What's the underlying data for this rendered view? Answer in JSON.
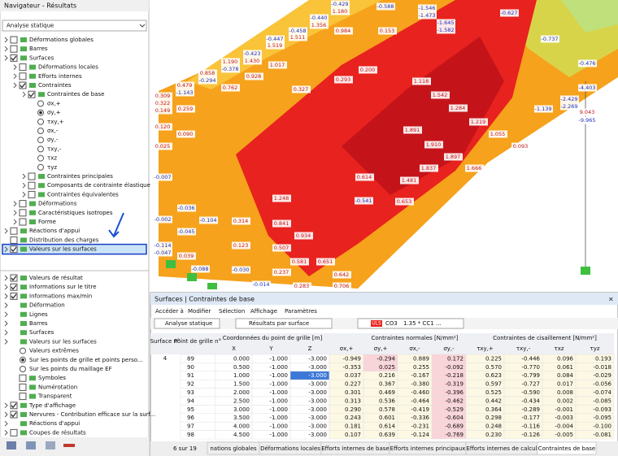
{
  "navigator": {
    "title": "Navigateur - Résultats",
    "dropdown": "Analyse statique",
    "tree": [
      {
        "label": "Déformations globales",
        "level": 0,
        "check": "off",
        "expander": true
      },
      {
        "label": "Barres",
        "level": 0,
        "check": "off",
        "expander": true
      },
      {
        "label": "Surfaces",
        "level": 0,
        "check": "on",
        "expander": true
      },
      {
        "label": "Déformations locales",
        "level": 1,
        "check": "off",
        "expander": true
      },
      {
        "label": "Efforts internes",
        "level": 1,
        "check": "off",
        "expander": true
      },
      {
        "label": "Contraintes",
        "level": 1,
        "check": "on",
        "expander": true
      },
      {
        "label": "Contraintes de base",
        "level": 2,
        "check": "on",
        "expander": true
      },
      {
        "label": "σx,+",
        "level": 3,
        "check": "radio"
      },
      {
        "label": "σy,+",
        "level": 3,
        "check": "radio-on"
      },
      {
        "label": "τxy,+",
        "level": 3,
        "check": "radio"
      },
      {
        "label": "σx,-",
        "level": 3,
        "check": "radio"
      },
      {
        "label": "σy,-",
        "level": 3,
        "check": "radio"
      },
      {
        "label": "τxy,-",
        "level": 3,
        "check": "radio"
      },
      {
        "label": "τxz",
        "level": 3,
        "check": "radio"
      },
      {
        "label": "τyz",
        "level": 3,
        "check": "radio"
      },
      {
        "label": "Contraintes principales",
        "level": 2,
        "check": "off",
        "expander": true
      },
      {
        "label": "Composants de contrainte élastique",
        "level": 2,
        "check": "off",
        "expander": true
      },
      {
        "label": "Contraintes équivalentes",
        "level": 2,
        "check": "off",
        "expander": true
      },
      {
        "label": "Déformations",
        "level": 1,
        "check": "off",
        "expander": true
      },
      {
        "label": "Caractéristiques isotropes",
        "level": 1,
        "check": "off",
        "expander": true
      },
      {
        "label": "Forme",
        "level": 1,
        "check": "off",
        "expander": true
      },
      {
        "label": "Réactions d'appui",
        "level": 0,
        "check": "off",
        "expander": true
      },
      {
        "label": "Distribution des charges",
        "level": 0,
        "check": "off",
        "expander": false
      },
      {
        "label": "Valeurs sur les surfaces",
        "level": 0,
        "check": "on",
        "expander": true,
        "selected": true
      }
    ],
    "lower": [
      {
        "label": "Valeurs de résultat",
        "level": 0,
        "check": "on",
        "expander": true
      },
      {
        "label": "Informations sur le titre",
        "level": 0,
        "check": "on",
        "expander": true
      },
      {
        "label": "Informations max/min",
        "level": 0,
        "check": "on",
        "expander": true
      },
      {
        "label": "Déformation",
        "level": 0,
        "check": "none",
        "expander": true
      },
      {
        "label": "Lignes",
        "level": 0,
        "check": "none",
        "expander": true
      },
      {
        "label": "Barres",
        "level": 0,
        "check": "none",
        "expander": true
      },
      {
        "label": "Surfaces",
        "level": 0,
        "check": "none",
        "expander": true
      },
      {
        "label": "Valeurs sur les surfaces",
        "level": 0,
        "check": "none",
        "expander": true
      },
      {
        "label": "Valeurs extrêmes",
        "level": 1,
        "check": "radio"
      },
      {
        "label": "Sur les points de grille et points perso...",
        "level": 1,
        "check": "radio-on"
      },
      {
        "label": "Sur les points du maillage EF",
        "level": 1,
        "check": "radio"
      },
      {
        "label": "Symboles",
        "level": 1,
        "check": "off"
      },
      {
        "label": "Numérotation",
        "level": 1,
        "check": "off"
      },
      {
        "label": "Transparent",
        "level": 1,
        "check": "off"
      },
      {
        "label": "Type d'affichage",
        "level": 0,
        "check": "on",
        "expander": true
      },
      {
        "label": "Nervures - Contribution efficace sur la surf...",
        "level": 0,
        "check": "on",
        "expander": true
      },
      {
        "label": "Réactions d'appui",
        "level": 0,
        "check": "none",
        "expander": true
      },
      {
        "label": "Coupes de résultats",
        "level": 0,
        "check": "off",
        "expander": true
      }
    ]
  },
  "view": {
    "labels": [
      "-0.429",
      "1.180",
      "-0.588",
      "-0.440",
      "1.356",
      "0.984",
      "0.153",
      "-1.546",
      "-1.473",
      "-1.645",
      "-1.582",
      "-0.627",
      "-0.458",
      "1.511",
      "-0.447",
      "1.519",
      "1.190",
      "-0.378",
      "-0.423",
      "1.430",
      "0.858",
      "-0.294",
      "0.479",
      "-1.143",
      "0.762",
      "0.928",
      "1.017",
      "0.327",
      "0.293",
      "0.200",
      "1.118",
      "1.542",
      "1.284",
      "1.219",
      "1.055",
      "0.093",
      "0.309",
      "0.322",
      "0.149",
      "0.120",
      "0.259",
      "0.090",
      "0.025",
      "1.891",
      "1.910",
      "1.837",
      "1.897",
      "1.666",
      "0.614",
      "1.481",
      "0.653",
      "-0.541",
      "1.248",
      "0.841",
      "0.934",
      "0.507",
      "0.237",
      "0.283",
      "0.123",
      "0.314",
      "-0.007",
      "-0.036",
      "-0.104",
      "-0.045",
      "-0.002",
      "-0.114",
      "-0.047",
      "0.039",
      "-0.088",
      "-0.030",
      "-0.014",
      "-4.403",
      "9.043",
      "-9.965",
      "-2.429",
      "-2.269",
      "-1.139",
      "-0.737",
      "-0.476",
      "0.706",
      "0.651",
      "0.581",
      "0.642"
    ]
  },
  "table_window": {
    "title": "Surfaces | Contraintes de base",
    "menu": [
      "Accéder à",
      "Modifier",
      "Sélection",
      "Affichage",
      "Paramètres"
    ],
    "toolbar": {
      "analysis": "Analyse statique",
      "results": "Résultats par surface",
      "design": "ULS",
      "combo": "CO3",
      "formula": "1.35 * CC1 ..."
    },
    "group_headers": [
      "Surface n°",
      "Point de grille n°",
      "Coordonnées du point de grille [m]",
      "Contraintes normales [N/mm²]",
      "Contraintes de cisaillement [N/mm²]"
    ],
    "columns": [
      "X",
      "Y",
      "Z",
      "σx,+",
      "σy,+",
      "σx,-",
      "σy,-",
      "τxy,+",
      "τxy,-",
      "τxz",
      "τyz"
    ],
    "surface": "4",
    "rows": [
      [
        "89",
        "0.000",
        "-1.000",
        "-3.000",
        "-0.949",
        "-0.294",
        "0.889",
        "0.172",
        "0.225",
        "-0.446",
        "0.096",
        "0.193"
      ],
      [
        "90",
        "0.500",
        "-1.000",
        "-3.000",
        "-0.353",
        "0.025",
        "0.255",
        "-0.092",
        "0.570",
        "-0.770",
        "0.061",
        "-0.018"
      ],
      [
        "91",
        "1.000",
        "-1.000",
        "-3.000",
        "0.037",
        "0.216",
        "-0.167",
        "-0.218",
        "0.623",
        "-0.799",
        "0.084",
        "-0.029"
      ],
      [
        "92",
        "1.500",
        "-1.000",
        "-3.000",
        "0.227",
        "0.367",
        "-0.380",
        "-0.319",
        "0.597",
        "-0.727",
        "0.017",
        "-0.056"
      ],
      [
        "93",
        "2.000",
        "-1.000",
        "-3.000",
        "0.301",
        "0.469",
        "-0.460",
        "-0.396",
        "0.525",
        "-0.590",
        "0.008",
        "-0.074"
      ],
      [
        "94",
        "2.500",
        "-1.000",
        "-3.000",
        "0.313",
        "0.536",
        "-0.464",
        "-0.462",
        "0.442",
        "-0.434",
        "0.002",
        "-0.085"
      ],
      [
        "95",
        "3.000",
        "-1.000",
        "-3.000",
        "0.290",
        "0.578",
        "-0.419",
        "-0.529",
        "0.364",
        "-0.289",
        "-0.001",
        "-0.093"
      ],
      [
        "96",
        "3.500",
        "-1.000",
        "-3.000",
        "0.243",
        "0.601",
        "-0.336",
        "-0.604",
        "0.298",
        "-0.177",
        "-0.003",
        "-0.095"
      ],
      [
        "97",
        "4.000",
        "-1.000",
        "-3.000",
        "0.181",
        "0.614",
        "-0.231",
        "-0.689",
        "0.248",
        "-0.116",
        "-0.004",
        "-0.100"
      ],
      [
        "98",
        "4.500",
        "-1.000",
        "-3.000",
        "0.107",
        "0.639",
        "-0.124",
        "-0.769",
        "0.230",
        "-0.126",
        "-0.005",
        "-0.081"
      ]
    ],
    "pager": "6 sur 19",
    "tabs": [
      "nations globales",
      "Déformations locales",
      "Efforts internes de base",
      "Efforts internes principaux",
      "Efforts internes de calcul",
      "Contraintes de base"
    ]
  }
}
